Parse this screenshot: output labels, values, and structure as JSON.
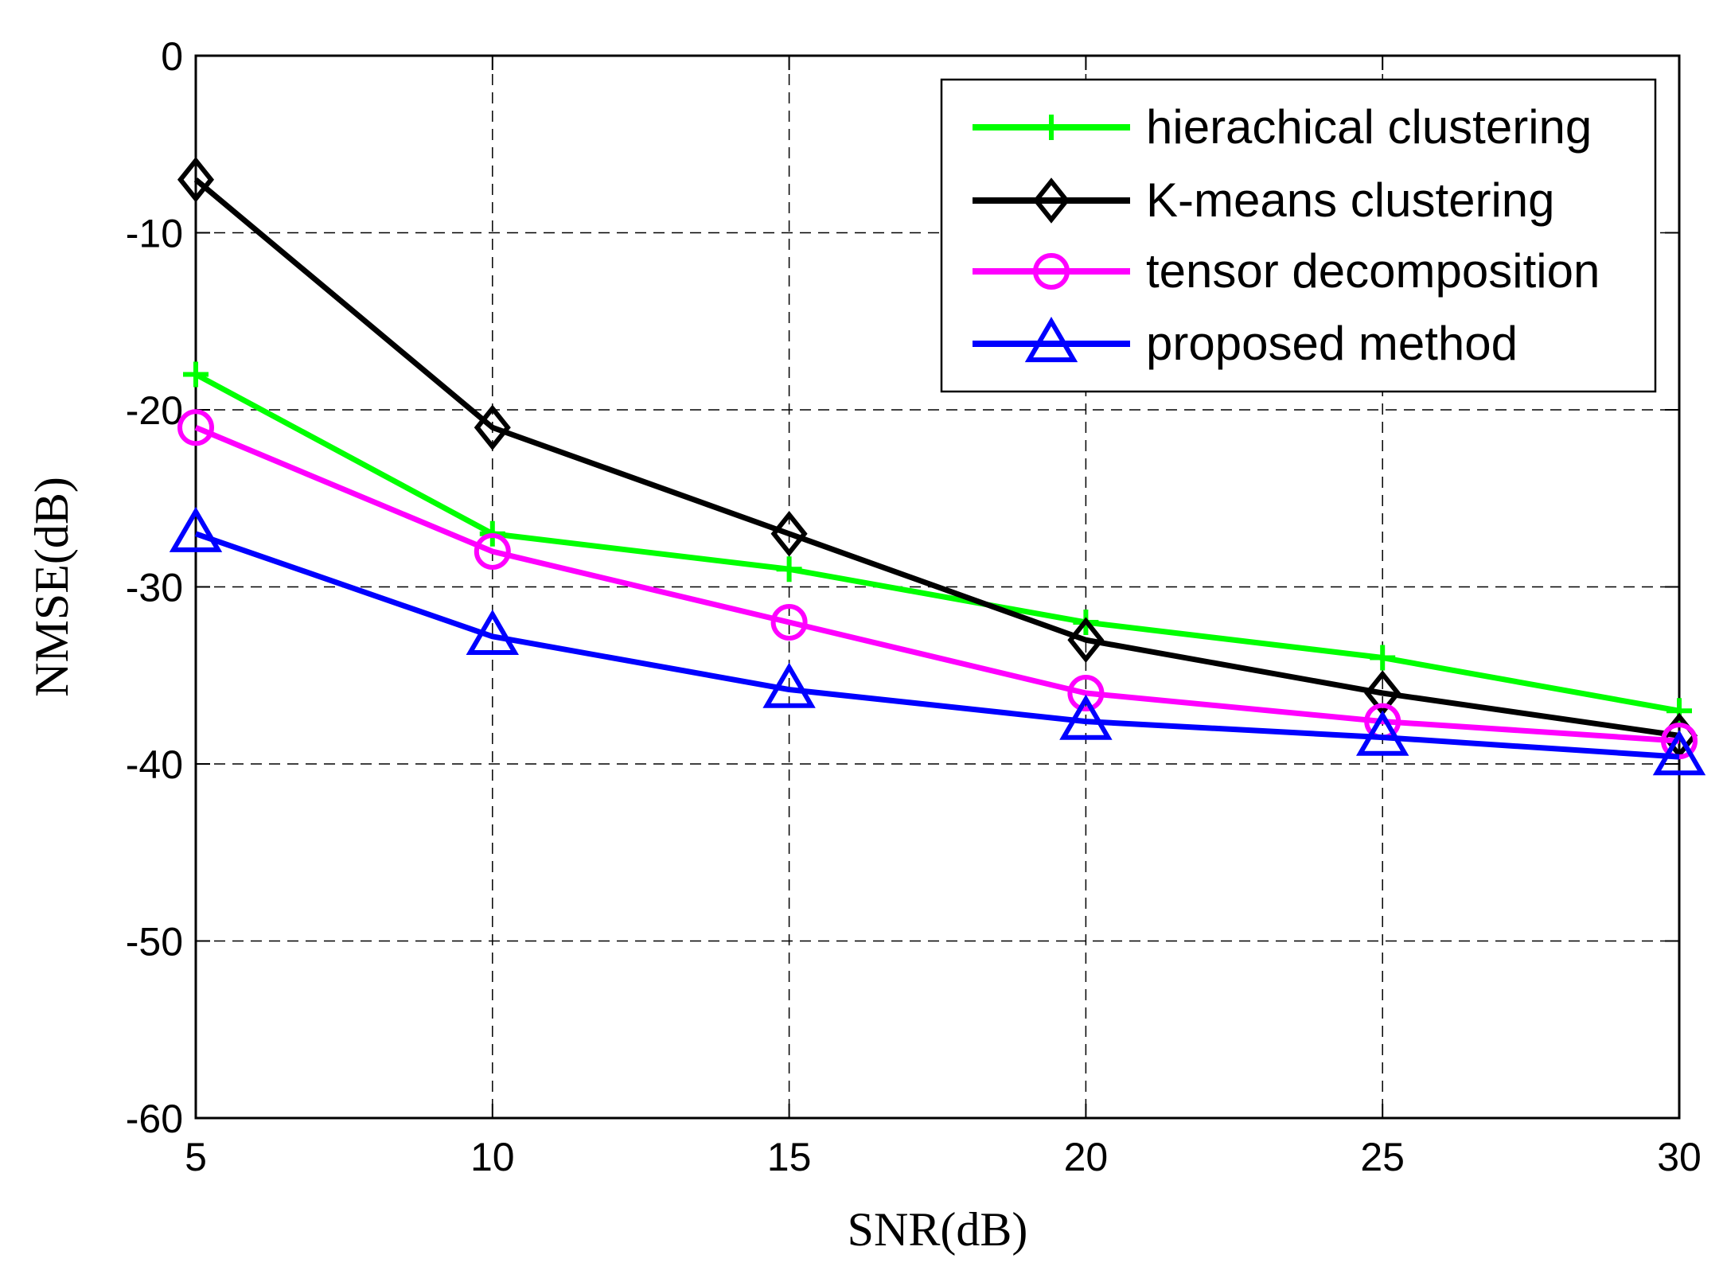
{
  "chart_data": {
    "type": "line",
    "title": "",
    "xlabel": "SNR(dB)",
    "ylabel": "NMSE(dB)",
    "xlim": [
      5,
      30
    ],
    "ylim": [
      -60,
      0
    ],
    "xticks": [
      5,
      10,
      15,
      20,
      25,
      30
    ],
    "yticks": [
      0,
      -10,
      -20,
      -30,
      -40,
      -50,
      -60
    ],
    "xtick_labels": [
      "5",
      "10",
      "15",
      "20",
      "25",
      "30"
    ],
    "ytick_labels": [
      "0",
      "-10",
      "-20",
      "-30",
      "-40",
      "-50",
      "-60"
    ],
    "grid": true,
    "legend_position": "top-right",
    "x": [
      5,
      10,
      15,
      20,
      25,
      30
    ],
    "series": [
      {
        "name": "hierachical clustering",
        "values": [
          -18,
          -27,
          -29,
          -32,
          -34,
          -37
        ],
        "color": "#00ff00",
        "marker": "plus"
      },
      {
        "name": "K-means clustering",
        "values": [
          -7,
          -21,
          -27,
          -33,
          -36,
          -38.4
        ],
        "color": "#000000",
        "marker": "diamond"
      },
      {
        "name": "tensor decomposition",
        "values": [
          -21,
          -28,
          -32,
          -36,
          -37.6,
          -38.7
        ],
        "color": "#ff00ff",
        "marker": "circle"
      },
      {
        "name": "proposed method",
        "values": [
          -27,
          -32.8,
          -35.8,
          -37.6,
          -38.5,
          -39.6
        ],
        "color": "#0000ff",
        "marker": "triangle"
      }
    ]
  }
}
